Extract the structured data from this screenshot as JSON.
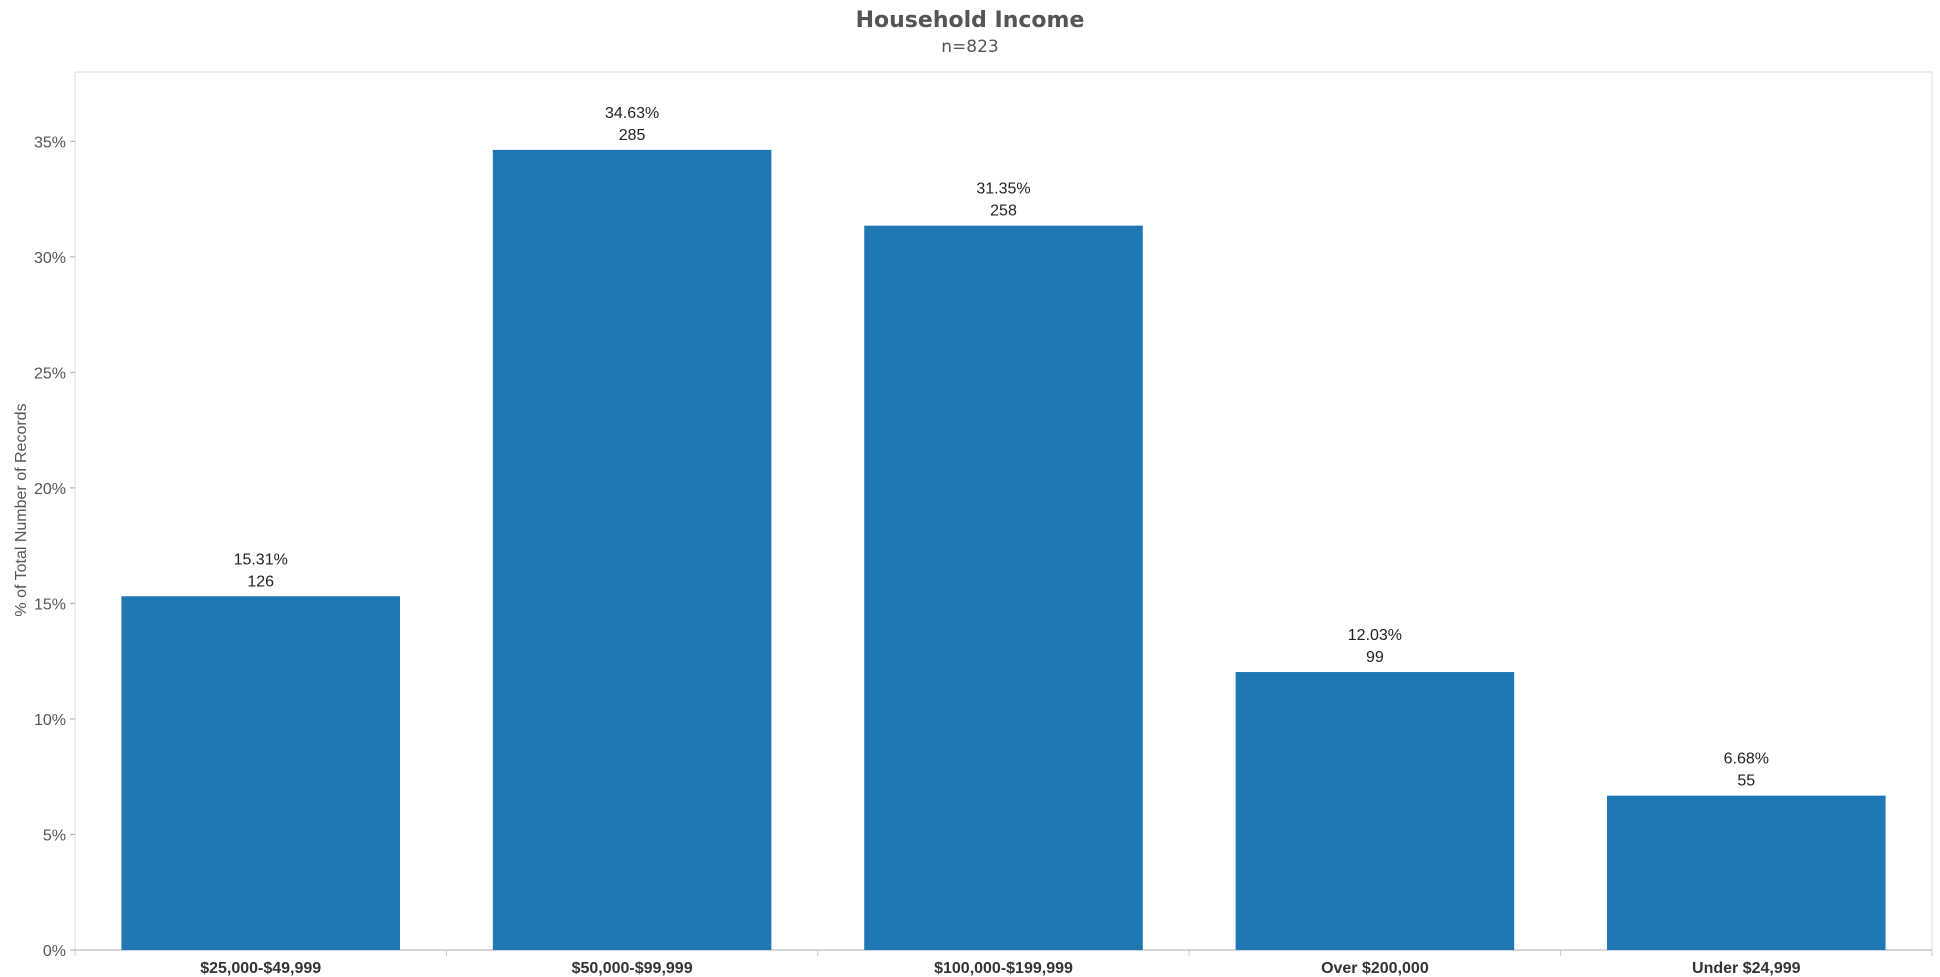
{
  "chart_data": {
    "type": "bar",
    "title": "Household Income",
    "subtitle": "n=823",
    "xlabel": "",
    "ylabel": "% of Total Number of Records",
    "categories": [
      "$25,000-$49,999",
      "$50,000-$99,999",
      "$100,000-$199,999",
      "Over $200,000",
      "Under $24,999"
    ],
    "values": [
      15.31,
      34.63,
      31.35,
      12.03,
      6.68
    ],
    "counts": [
      126,
      285,
      258,
      99,
      55
    ],
    "value_labels": [
      "15.31%",
      "34.63%",
      "31.35%",
      "12.03%",
      "6.68%"
    ],
    "count_labels": [
      "126",
      "285",
      "258",
      "99",
      "55"
    ],
    "ylim": [
      0,
      38
    ],
    "yticks": [
      0,
      5,
      10,
      15,
      20,
      25,
      30,
      35
    ],
    "ytick_labels": [
      "0%",
      "5%",
      "10%",
      "15%",
      "20%",
      "25%",
      "30%",
      "35%"
    ],
    "grid": false,
    "legend": "none",
    "bar_color": "#1f77b4"
  }
}
